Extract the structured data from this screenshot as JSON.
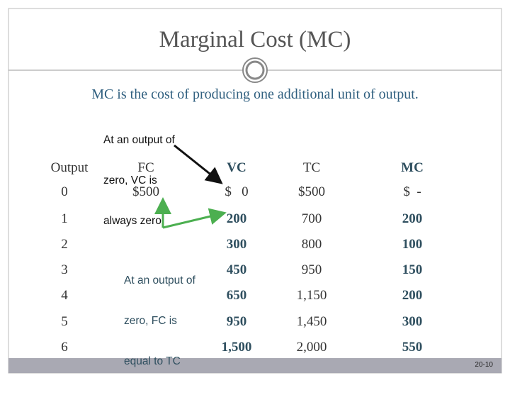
{
  "title": "Marginal Cost (MC)",
  "subtitle": "MC is the cost of producing one additional unit of output.",
  "annotations": [
    {
      "lines": [
        "At an output of",
        "zero, VC is",
        "always zero"
      ]
    },
    {
      "lines": [
        "At an output of",
        "zero, FC is",
        "equal to TC"
      ]
    }
  ],
  "table": {
    "headers": {
      "output": "Output",
      "fc": "FC",
      "vc": "VC",
      "tc": "TC",
      "mc": "MC"
    },
    "rows": [
      {
        "output": "0",
        "fc": "$500",
        "vc": "$   0",
        "tc": "$500",
        "mc": "$  -"
      },
      {
        "output": "1",
        "vc": "200",
        "tc": "700",
        "mc": "200"
      },
      {
        "output": "2",
        "vc": "300",
        "tc": "800",
        "mc": "100"
      },
      {
        "output": "3",
        "vc": "450",
        "tc": "950",
        "mc": "150"
      },
      {
        "output": "4",
        "vc": "650",
        "tc": "1,150",
        "mc": "200"
      },
      {
        "output": "5",
        "vc": "950",
        "tc": "1,450",
        "mc": "300"
      },
      {
        "output": "6",
        "vc": "1,500",
        "tc": "2,000",
        "mc": "550"
      }
    ]
  },
  "footer": "20-10"
}
